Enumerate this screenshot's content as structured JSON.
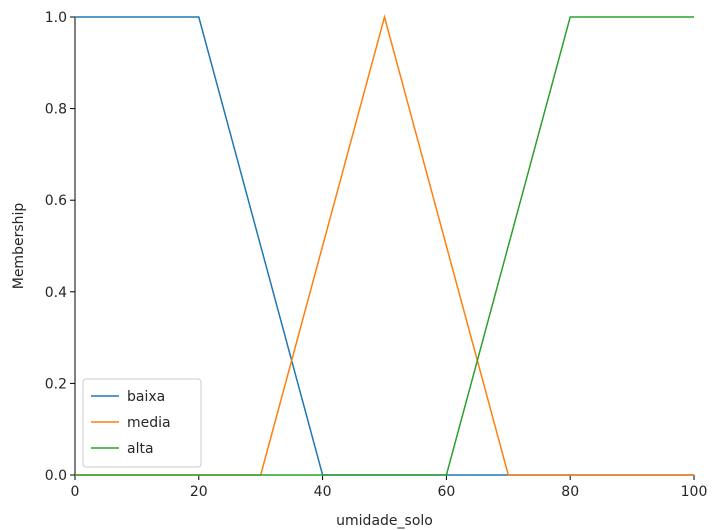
{
  "chart_data": {
    "type": "line",
    "xlabel": "umidade_solo",
    "ylabel": "Membership",
    "xlim": [
      0,
      100
    ],
    "ylim": [
      0,
      1.0
    ],
    "x_ticks": [
      "0",
      "20",
      "40",
      "60",
      "80",
      "100"
    ],
    "y_ticks": [
      "0.0",
      "0.2",
      "0.4",
      "0.6",
      "0.8",
      "1.0"
    ],
    "grid": false,
    "legend_position": "lower-left",
    "series": [
      {
        "name": "baixa",
        "color": "#1f77b4",
        "x": [
          0,
          20,
          40,
          100
        ],
        "y": [
          1,
          1,
          0,
          0
        ]
      },
      {
        "name": "media",
        "color": "#ff7f0e",
        "x": [
          0,
          30,
          50,
          70,
          100
        ],
        "y": [
          0,
          0,
          1,
          0,
          0
        ]
      },
      {
        "name": "alta",
        "color": "#2ca02c",
        "x": [
          0,
          60,
          80,
          100
        ],
        "y": [
          0,
          0,
          1,
          1
        ]
      }
    ]
  }
}
